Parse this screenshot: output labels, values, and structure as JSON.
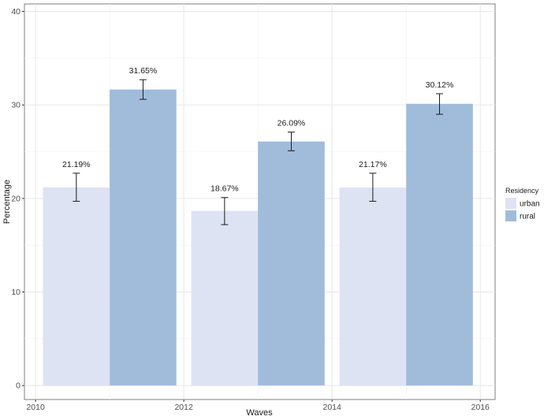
{
  "chart_data": {
    "type": "bar",
    "xlabel": "Waves",
    "ylabel": "Percentage",
    "xlim": [
      2009.85,
      2016.2
    ],
    "ylim": [
      -1.5,
      40.8
    ],
    "x_ticks": [
      2010,
      2012,
      2014,
      2016
    ],
    "y_ticks": [
      0,
      10,
      20,
      30,
      40
    ],
    "grid": true,
    "legend": {
      "title": "Residency",
      "position": "right"
    },
    "bar_width_years": 0.9,
    "series": [
      {
        "name": "urban",
        "color": "#dde3f3",
        "x": [
          2010.55,
          2012.55,
          2014.55
        ],
        "values": [
          21.19,
          18.67,
          21.17
        ],
        "error_low": [
          19.7,
          17.2,
          19.7
        ],
        "error_high": [
          22.7,
          20.1,
          22.7
        ],
        "labels": [
          "21.19%",
          "18.67%",
          "21.17%"
        ]
      },
      {
        "name": "rural",
        "color": "#a0bcda",
        "x": [
          2011.45,
          2013.45,
          2015.45
        ],
        "values": [
          31.65,
          26.09,
          30.12
        ],
        "error_low": [
          30.6,
          25.1,
          29.0
        ],
        "error_high": [
          32.7,
          27.1,
          31.2
        ],
        "labels": [
          "31.65%",
          "26.09%",
          "30.12%"
        ]
      }
    ]
  }
}
